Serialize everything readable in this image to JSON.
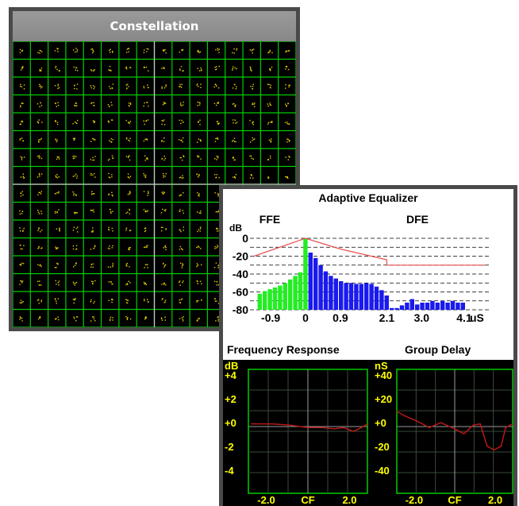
{
  "constellation": {
    "title": "Constellation",
    "grid_cols": 16,
    "grid_rows": 16,
    "colors": {
      "grid": "#00cc00",
      "points": "#e0d000",
      "axes": "#c8c8c8",
      "background": "#000000"
    }
  },
  "equalizer": {
    "title": "Adaptive Equalizer",
    "ffe_label": "FFE",
    "dfe_label": "DFE",
    "y_unit": "dB",
    "y_ticks": [
      "0",
      "-20",
      "-40",
      "-60",
      "-80"
    ],
    "x_ticks": [
      "-0.9",
      "0",
      "0.9",
      "2.1",
      "3.0",
      "4.1"
    ],
    "x_unit": "uS",
    "colors": {
      "ffe": "#22ee22",
      "dfe": "#1a1aee",
      "envelope": "#e85050"
    },
    "chart_data": {
      "type": "bar",
      "ylabel": "dB",
      "ylim": [
        -80,
        0
      ],
      "series": [
        {
          "name": "FFE",
          "values": [
            -62,
            -59,
            -57,
            -55,
            -53,
            -50,
            -46,
            -42,
            -38,
            0
          ]
        },
        {
          "name": "DFE",
          "values": [
            -16,
            -22,
            -30,
            -37,
            -42,
            -45,
            -48,
            -50,
            -50,
            -51,
            -51,
            -50,
            -51,
            -54,
            -58,
            -64,
            -78,
            -78,
            -75,
            -72,
            -68,
            -74,
            -72,
            -72,
            -70,
            -72,
            -70,
            -72,
            -70,
            -72,
            -72
          ]
        }
      ],
      "envelope": [
        [
          -0.9,
          -20
        ],
        [
          0.0,
          0
        ],
        [
          0.9,
          -12
        ],
        [
          2.1,
          -24
        ],
        [
          2.1,
          -30
        ],
        [
          4.1,
          -30
        ]
      ]
    }
  },
  "frequency_response": {
    "label": "Frequency Response",
    "unit": "dB",
    "y_ticks": [
      "+4",
      "+2",
      "+0",
      "-2",
      "-4"
    ],
    "x_ticks": [
      "-2.0",
      "CF",
      "2.0"
    ]
  },
  "group_delay": {
    "label": "Group Delay",
    "unit": "nS",
    "y_ticks": [
      "+40",
      "+20",
      "+0",
      "-20",
      "-40"
    ],
    "x_ticks": [
      "-2.0",
      "CF",
      "2.0"
    ]
  },
  "plot_colors": {
    "trace": "#b81818",
    "grid": "#3a4a3a",
    "border": "#00cc00",
    "labels": "#ffff00"
  }
}
